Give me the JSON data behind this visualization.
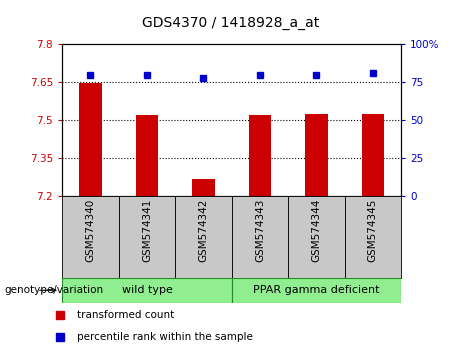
{
  "title": "GDS4370 / 1418928_a_at",
  "samples": [
    "GSM574340",
    "GSM574341",
    "GSM574342",
    "GSM574343",
    "GSM574344",
    "GSM574345"
  ],
  "bar_values": [
    7.647,
    7.52,
    7.27,
    7.52,
    7.525,
    7.525
  ],
  "percentile_values": [
    80,
    80,
    78,
    80,
    80,
    81
  ],
  "ylim_left": [
    7.2,
    7.8
  ],
  "ylim_right": [
    0,
    100
  ],
  "yticks_left": [
    7.2,
    7.35,
    7.5,
    7.65,
    7.8
  ],
  "ytick_labels_left": [
    "7.2",
    "7.35",
    "7.5",
    "7.65",
    "7.8"
  ],
  "yticks_right": [
    0,
    25,
    50,
    75,
    100
  ],
  "ytick_labels_right": [
    "0",
    "25",
    "50",
    "75",
    "100%"
  ],
  "hlines": [
    7.35,
    7.5,
    7.65
  ],
  "bar_color": "#cc0000",
  "percentile_color": "#0000cc",
  "group1_label": "wild type",
  "group1_indices": [
    0,
    1,
    2
  ],
  "group2_label": "PPAR gamma deficient",
  "group2_indices": [
    3,
    4,
    5
  ],
  "group_fill_color": "#90ee90",
  "group_edge_color": "#228B22",
  "legend_items": [
    {
      "color": "#cc0000",
      "label": "transformed count"
    },
    {
      "color": "#0000cc",
      "label": "percentile rank within the sample"
    }
  ],
  "genotype_label": "genotype/variation",
  "plot_bg_color": "#ffffff",
  "tick_area_color": "#c8c8c8"
}
